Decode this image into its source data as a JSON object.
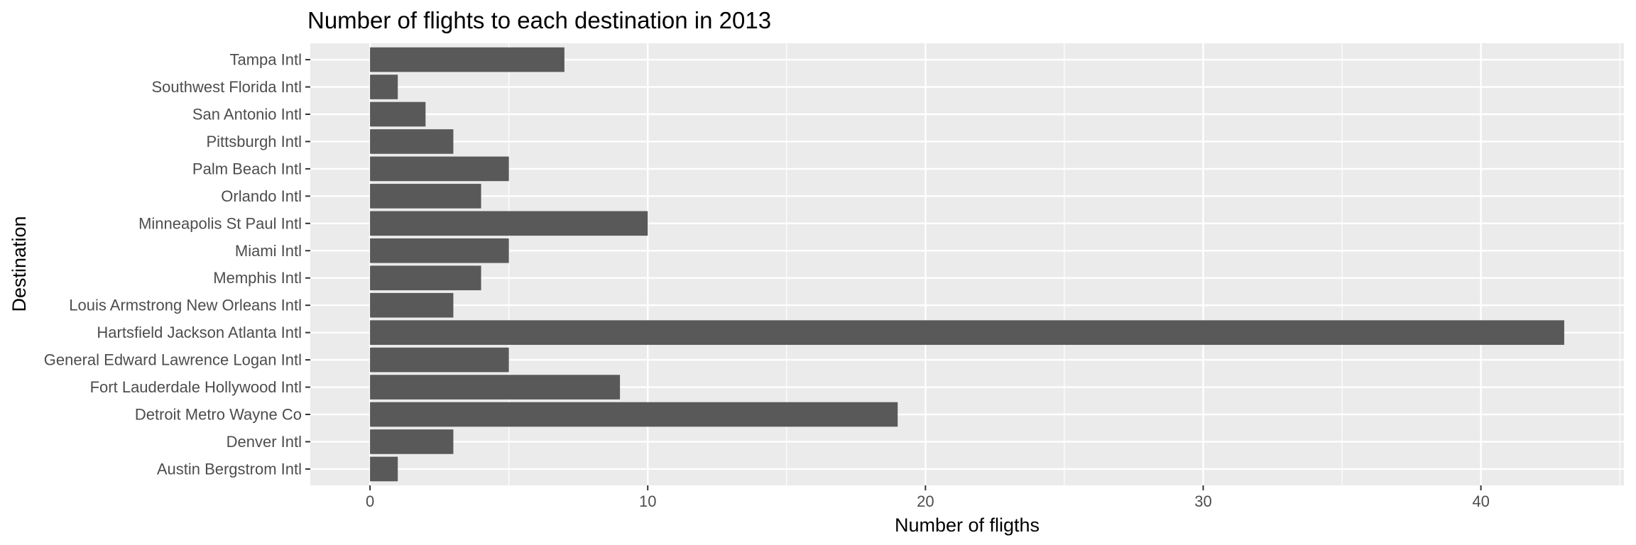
{
  "chart_data": {
    "type": "bar",
    "orientation": "horizontal",
    "title": "Number of flights to each destination in 2013",
    "xlabel": "Number of fligths",
    "ylabel": "Destination",
    "xlim": [
      -2.15,
      45.15
    ],
    "x_ticks": [
      0,
      10,
      20,
      30,
      40
    ],
    "categories": [
      "Austin Bergstrom Intl",
      "Denver Intl",
      "Detroit Metro Wayne Co",
      "Fort Lauderdale Hollywood Intl",
      "General Edward Lawrence Logan Intl",
      "Hartsfield Jackson Atlanta Intl",
      "Louis Armstrong New Orleans Intl",
      "Memphis Intl",
      "Miami Intl",
      "Minneapolis St Paul Intl",
      "Orlando Intl",
      "Palm Beach Intl",
      "Pittsburgh Intl",
      "San Antonio Intl",
      "Southwest Florida Intl",
      "Tampa Intl"
    ],
    "values": [
      1,
      3,
      19,
      9,
      5,
      43,
      3,
      4,
      5,
      10,
      4,
      5,
      3,
      2,
      1,
      7
    ],
    "colors": {
      "panel_bg": "#ebebeb",
      "grid_major": "#ffffff",
      "bar": "#595959",
      "tick": "#333333",
      "tick_label": "#4d4d4d",
      "text": "#000000"
    },
    "grid": true,
    "legend": "none"
  }
}
